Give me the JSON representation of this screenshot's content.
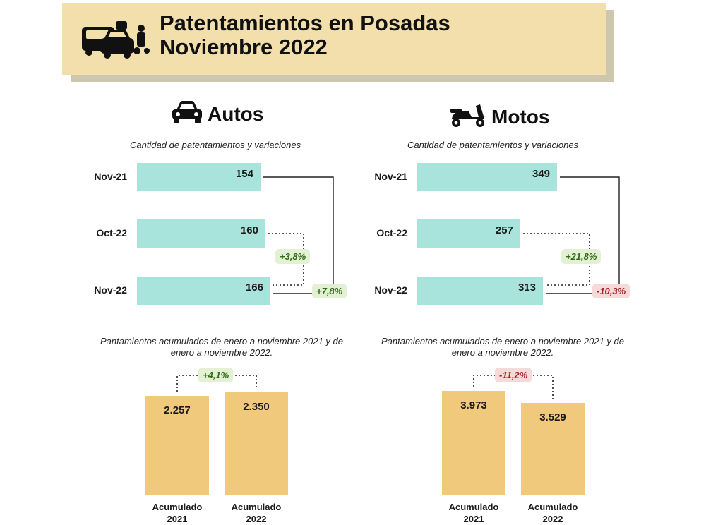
{
  "header": {
    "title_line1": "Patentamientos en Posadas",
    "title_line2": "Noviembre 2022",
    "icon": "vehicles-icon"
  },
  "colors": {
    "banner": "#f3dfab",
    "hbar": "#a8e4dc",
    "vbar": "#f1c97d",
    "positive": "#2f6b1a",
    "negative": "#a32020"
  },
  "chart_data": [
    {
      "type": "bar",
      "orientation": "horizontal",
      "title": "Autos",
      "subtitle": "Cantidad de patentamientos y variaciones",
      "icon": "car-icon",
      "categories": [
        "Nov-21",
        "Oct-22",
        "Nov-22"
      ],
      "values": [
        154,
        160,
        166
      ],
      "value_labels": [
        "154",
        "160",
        "166"
      ],
      "annotations": [
        {
          "from": "Oct-22",
          "to": "Nov-22",
          "label": "+3,8%",
          "sign": "positive"
        },
        {
          "from": "Nov-21",
          "to": "Nov-22",
          "label": "+7,8%",
          "sign": "positive"
        }
      ]
    },
    {
      "type": "bar",
      "orientation": "horizontal",
      "title": "Motos",
      "subtitle": "Cantidad de patentamientos y variaciones",
      "icon": "scooter-icon",
      "categories": [
        "Nov-21",
        "Oct-22",
        "Nov-22"
      ],
      "values": [
        349,
        257,
        313
      ],
      "value_labels": [
        "349",
        "257",
        "313"
      ],
      "annotations": [
        {
          "from": "Oct-22",
          "to": "Nov-22",
          "label": "+21,8%",
          "sign": "positive"
        },
        {
          "from": "Nov-21",
          "to": "Nov-22",
          "label": "-10,3%",
          "sign": "negative"
        }
      ]
    },
    {
      "type": "bar",
      "orientation": "vertical",
      "title": "Pantamientos acumulados de enero a noviembre 2021 y de enero a noviembre 2022.",
      "categories": [
        "Acumulado 2021",
        "Acumulado 2022"
      ],
      "values": [
        2257,
        2350
      ],
      "value_labels": [
        "2.257",
        "2.350"
      ],
      "annotations": [
        {
          "label": "+4,1%",
          "sign": "positive"
        }
      ]
    },
    {
      "type": "bar",
      "orientation": "vertical",
      "title": "Pantamientos acumulados de enero a noviembre 2021 y de enero a noviembre 2022.",
      "categories": [
        "Acumulado 2021",
        "Acumulado 2022"
      ],
      "values": [
        3973,
        3529
      ],
      "value_labels": [
        "3.973",
        "3.529"
      ],
      "annotations": [
        {
          "label": "-11,2%",
          "sign": "negative"
        }
      ]
    }
  ]
}
